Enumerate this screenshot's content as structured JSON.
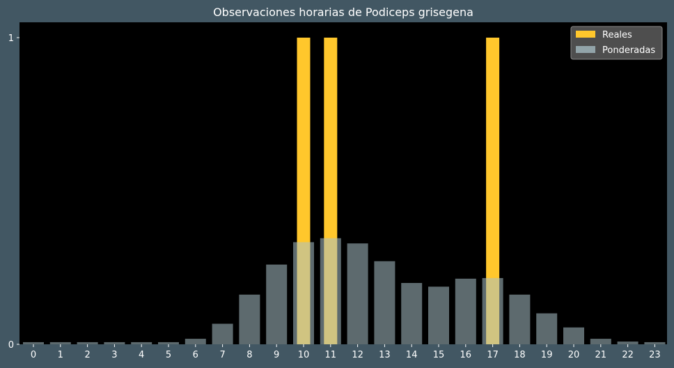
{
  "chart_data": {
    "type": "bar",
    "title": "Observaciones horarias de Podiceps grisegena",
    "xlabel": "",
    "ylabel": "",
    "categories": [
      "0",
      "1",
      "2",
      "3",
      "4",
      "5",
      "6",
      "7",
      "8",
      "9",
      "10",
      "11",
      "12",
      "13",
      "14",
      "15",
      "16",
      "17",
      "18",
      "19",
      "20",
      "21",
      "22",
      "23"
    ],
    "ylim": [
      0,
      1.05
    ],
    "yticks": [
      0,
      1
    ],
    "ytick_labels": [
      "0",
      "1"
    ],
    "grid": false,
    "legend_position": "top-right",
    "series": [
      {
        "name": "Reales",
        "color": "#ffc72c",
        "values": [
          0,
          0,
          0,
          0,
          0,
          0,
          0,
          0,
          0,
          0,
          1,
          1,
          0,
          0,
          0,
          0,
          0,
          1,
          0,
          0,
          0,
          0,
          0,
          0
        ]
      },
      {
        "name": "Ponderadas",
        "color": "#a9c1c8",
        "values": [
          0.007,
          0.007,
          0.007,
          0.007,
          0.007,
          0.007,
          0.018,
          0.067,
          0.162,
          0.26,
          0.333,
          0.346,
          0.329,
          0.271,
          0.2,
          0.188,
          0.214,
          0.216,
          0.162,
          0.101,
          0.055,
          0.018,
          0.009,
          0.007
        ]
      }
    ]
  },
  "colors": {
    "page_background": "#425763",
    "plot_background": "#000000",
    "legend_background": "#555555"
  }
}
